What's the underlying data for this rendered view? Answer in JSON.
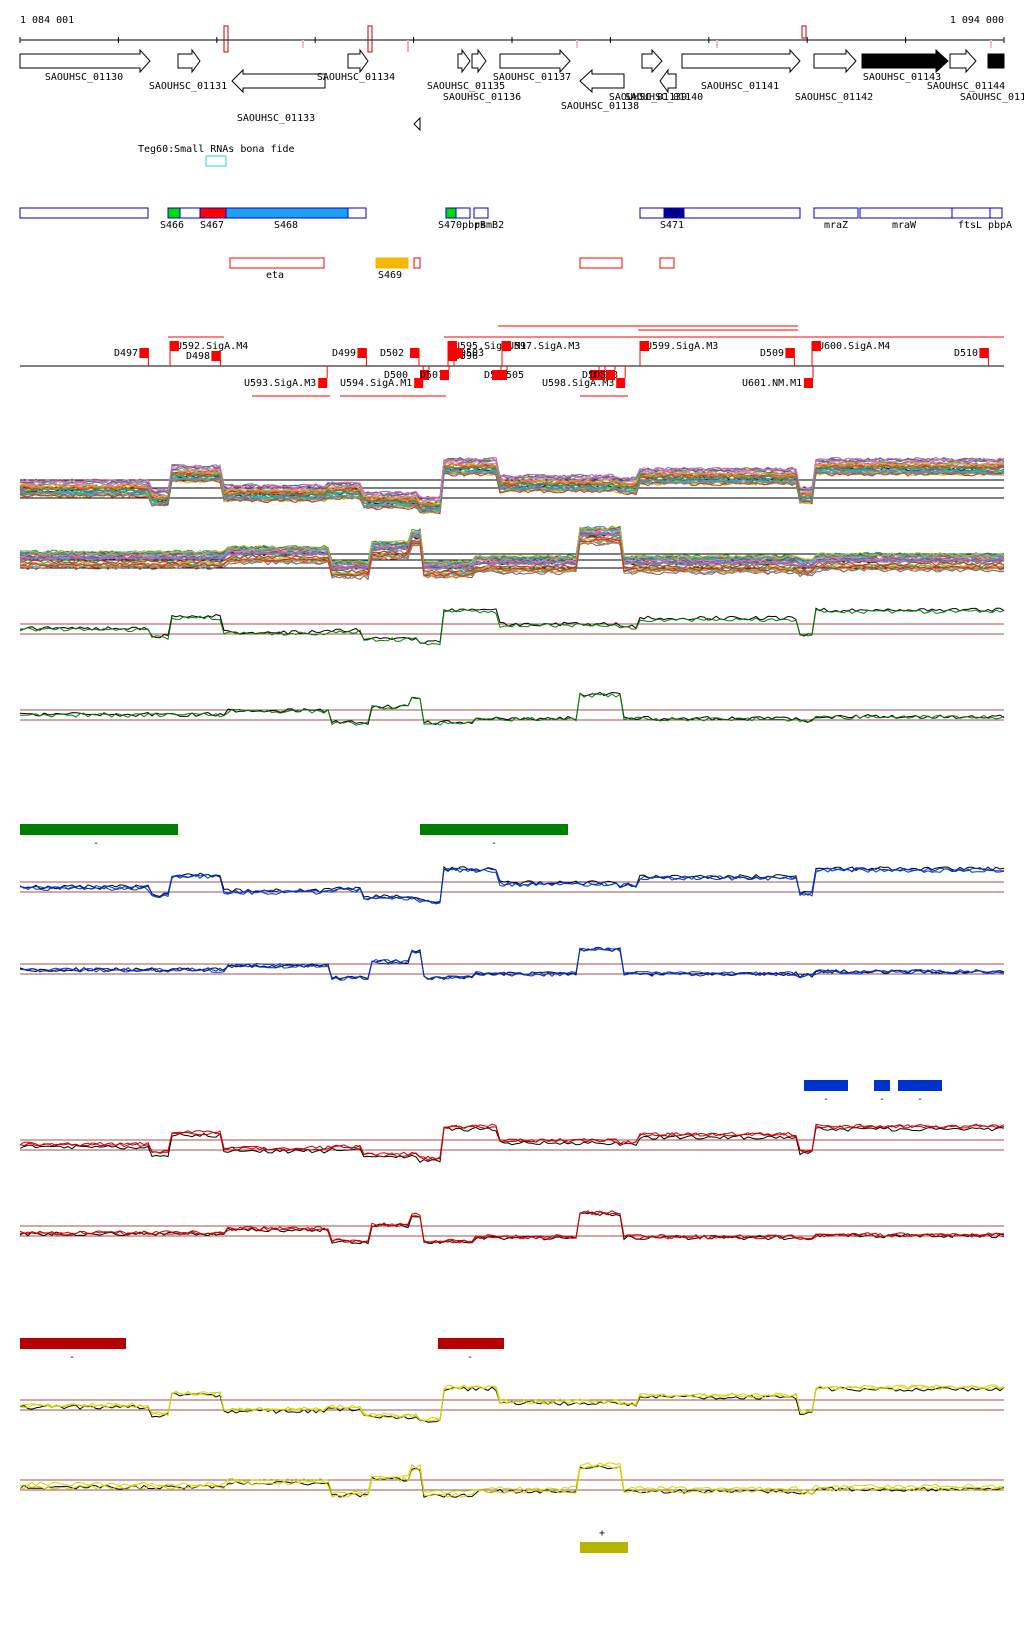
{
  "ruler": {
    "start": "1 084 001",
    "end": "1 094 000"
  },
  "colors": {
    "sigB_bar": "#008000",
    "sigB_line": "#008000",
    "blue_bar": "#0033cc",
    "blue_line": "#0033cc",
    "red_bar": "#b40000",
    "red_line": "#cc0000",
    "yellow_bar": "#b5b500",
    "yellow_line": "#d4d400",
    "feature_red": "#ff0000",
    "feature_blue": "#0000cc",
    "srna_orange": "#f5b800"
  },
  "genes": [
    {
      "label": "SAOUHSC_01130"
    },
    {
      "label": "SAOUHSC_01131"
    },
    {
      "label": "SAOUHSC_01133"
    },
    {
      "label": "SAOUHSC_01134"
    },
    {
      "label": "SAOUHSC_01135"
    },
    {
      "label": "SAOUHSC_01136"
    },
    {
      "label": "SAOUHSC_01137"
    },
    {
      "label": "SAOUHSC_01138"
    },
    {
      "label": "SAOUHSC_01139"
    },
    {
      "label": "SAOUHSC_01140"
    },
    {
      "label": "SAOUHSC_01141"
    },
    {
      "label": "SAOUHSC_01142"
    },
    {
      "label": "SAOUHSC_01143"
    },
    {
      "label": "SAOUHSC_01144"
    },
    {
      "label": "SAOUHSC_0114"
    }
  ],
  "teg_track": {
    "label": "Teg60:Small RNAs bona fide"
  },
  "segments": [
    {
      "label": "S466"
    },
    {
      "label": "S467"
    },
    {
      "label": "S468"
    },
    {
      "label": "S470"
    },
    {
      "label": "pbpB"
    },
    {
      "label": "rsmB2"
    },
    {
      "label": "S471"
    },
    {
      "label": "mraZ"
    },
    {
      "label": "mraW"
    },
    {
      "label": "ftsL"
    },
    {
      "label": "pbpA"
    }
  ],
  "srnas": [
    {
      "label": "eta"
    },
    {
      "label": "S469"
    }
  ],
  "promoters": [
    {
      "label": "D497"
    },
    {
      "label": "U592.SigA.M4"
    },
    {
      "label": "D498"
    },
    {
      "label": "D499"
    },
    {
      "label": "D502"
    },
    {
      "label": "U593.SigA.M3"
    },
    {
      "label": "U594.SigA.M1"
    },
    {
      "label": "D500"
    },
    {
      "label": "D501"
    },
    {
      "label": "U595.SigA.M1"
    },
    {
      "label": "U596"
    },
    {
      "label": "D503"
    },
    {
      "label": "D504"
    },
    {
      "label": "D505"
    },
    {
      "label": "U597.SigA.M3"
    },
    {
      "label": "U598.SigA.M3"
    },
    {
      "label": "D506"
    },
    {
      "label": "D507"
    },
    {
      "label": "D508"
    },
    {
      "label": "U599.SigA.M3"
    },
    {
      "label": "D509"
    },
    {
      "label": "U601.NM.M1"
    },
    {
      "label": "U600.SigA.M4"
    },
    {
      "label": "D510"
    }
  ],
  "condition_marks": [
    {
      "sign": "-"
    },
    {
      "sign": "-"
    },
    {
      "sign": "-"
    },
    {
      "sign": "-"
    },
    {
      "sign": "-"
    },
    {
      "sign": "-"
    },
    {
      "sign": "-"
    },
    {
      "sign": "+"
    }
  ]
}
